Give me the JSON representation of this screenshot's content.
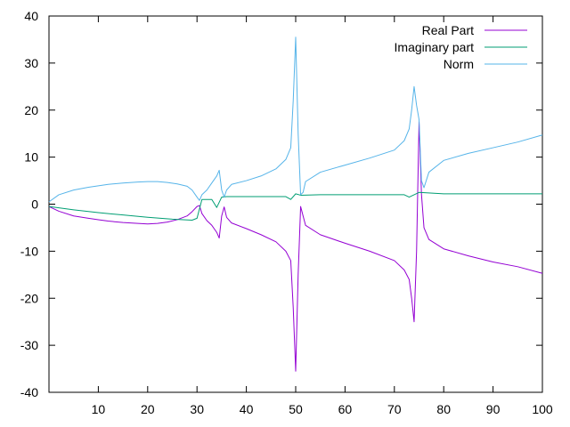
{
  "chart_data": {
    "type": "line",
    "title": "",
    "xlabel": "",
    "ylabel": "",
    "xlim": [
      0,
      100
    ],
    "ylim": [
      -40,
      40
    ],
    "x_ticks": [
      10,
      20,
      30,
      40,
      50,
      60,
      70,
      80,
      90,
      100
    ],
    "y_ticks": [
      -40,
      -30,
      -20,
      -10,
      0,
      10,
      20,
      30,
      40
    ],
    "grid": false,
    "legend_position": "top-right",
    "series": [
      {
        "name": "Real Part",
        "color": "#9400d3",
        "points": [
          [
            0,
            -0.5
          ],
          [
            2,
            -1.5
          ],
          [
            5,
            -2.5
          ],
          [
            8,
            -3.0
          ],
          [
            10,
            -3.3
          ],
          [
            12,
            -3.6
          ],
          [
            15,
            -3.9
          ],
          [
            18,
            -4.1
          ],
          [
            20,
            -4.2
          ],
          [
            22,
            -4.1
          ],
          [
            24,
            -3.8
          ],
          [
            26,
            -3.3
          ],
          [
            28,
            -2.5
          ],
          [
            29,
            -1.6
          ],
          [
            30,
            -0.5
          ],
          [
            30.5,
            -0.3
          ],
          [
            31,
            -2.0
          ],
          [
            32,
            -3.5
          ],
          [
            33,
            -4.5
          ],
          [
            34,
            -6.0
          ],
          [
            34.5,
            -7.2
          ],
          [
            35,
            -2.5
          ],
          [
            35.5,
            -0.6
          ],
          [
            36,
            -2.8
          ],
          [
            37,
            -4.0
          ],
          [
            40,
            -5.2
          ],
          [
            43,
            -6.5
          ],
          [
            46,
            -8.0
          ],
          [
            48,
            -10.0
          ],
          [
            49,
            -12.0
          ],
          [
            49.5,
            -22.0
          ],
          [
            50,
            -35.5
          ],
          [
            50.5,
            -15.0
          ],
          [
            51,
            -0.5
          ],
          [
            51.5,
            -2.5
          ],
          [
            52,
            -4.5
          ],
          [
            55,
            -6.5
          ],
          [
            60,
            -8.3
          ],
          [
            65,
            -10.0
          ],
          [
            70,
            -12.0
          ],
          [
            72,
            -14.0
          ],
          [
            73,
            -16.0
          ],
          [
            73.5,
            -20.0
          ],
          [
            74,
            -25.0
          ],
          [
            74.5,
            -10.0
          ],
          [
            75,
            17.5
          ],
          [
            75.5,
            2.0
          ],
          [
            76,
            -5.0
          ],
          [
            77,
            -7.5
          ],
          [
            80,
            -9.5
          ],
          [
            85,
            -11.0
          ],
          [
            90,
            -12.3
          ],
          [
            95,
            -13.3
          ],
          [
            100,
            -14.7
          ]
        ]
      },
      {
        "name": "Imaginary part",
        "color": "#009e73",
        "points": [
          [
            0,
            -0.5
          ],
          [
            5,
            -1.2
          ],
          [
            10,
            -1.8
          ],
          [
            15,
            -2.3
          ],
          [
            20,
            -2.8
          ],
          [
            25,
            -3.2
          ],
          [
            29,
            -3.4
          ],
          [
            30,
            -3.0
          ],
          [
            31,
            1.0
          ],
          [
            33,
            1.0
          ],
          [
            34,
            -0.7
          ],
          [
            35,
            1.5
          ],
          [
            36,
            1.6
          ],
          [
            40,
            1.6
          ],
          [
            45,
            1.6
          ],
          [
            48,
            1.6
          ],
          [
            49,
            1.0
          ],
          [
            50,
            2.2
          ],
          [
            51,
            1.9
          ],
          [
            55,
            2.0
          ],
          [
            60,
            2.0
          ],
          [
            65,
            2.0
          ],
          [
            70,
            2.0
          ],
          [
            72,
            2.0
          ],
          [
            73,
            1.5
          ],
          [
            74,
            2.0
          ],
          [
            75,
            2.5
          ],
          [
            80,
            2.2
          ],
          [
            85,
            2.2
          ],
          [
            90,
            2.2
          ],
          [
            95,
            2.2
          ],
          [
            100,
            2.2
          ]
        ]
      },
      {
        "name": "Norm",
        "color": "#56b4e9",
        "points": [
          [
            0,
            0.5
          ],
          [
            2,
            2.0
          ],
          [
            5,
            3.0
          ],
          [
            8,
            3.6
          ],
          [
            10,
            3.9
          ],
          [
            12,
            4.2
          ],
          [
            15,
            4.5
          ],
          [
            18,
            4.7
          ],
          [
            20,
            4.8
          ],
          [
            22,
            4.8
          ],
          [
            24,
            4.6
          ],
          [
            26,
            4.3
          ],
          [
            28,
            3.8
          ],
          [
            29,
            3.0
          ],
          [
            30,
            1.5
          ],
          [
            30.5,
            0.8
          ],
          [
            31,
            2.0
          ],
          [
            32,
            3.0
          ],
          [
            33,
            4.5
          ],
          [
            34,
            6.0
          ],
          [
            34.5,
            7.2
          ],
          [
            35,
            3.0
          ],
          [
            35.5,
            1.5
          ],
          [
            36,
            3.0
          ],
          [
            37,
            4.2
          ],
          [
            40,
            5.0
          ],
          [
            43,
            6.0
          ],
          [
            46,
            7.5
          ],
          [
            48,
            9.5
          ],
          [
            49,
            12.0
          ],
          [
            49.5,
            22.0
          ],
          [
            50,
            35.5
          ],
          [
            50.5,
            15.0
          ],
          [
            51,
            2.0
          ],
          [
            51.5,
            2.5
          ],
          [
            52,
            4.8
          ],
          [
            55,
            6.8
          ],
          [
            60,
            8.3
          ],
          [
            65,
            9.8
          ],
          [
            70,
            11.5
          ],
          [
            72,
            13.5
          ],
          [
            73,
            16.0
          ],
          [
            73.5,
            20.0
          ],
          [
            74,
            25.0
          ],
          [
            74.5,
            21.0
          ],
          [
            75,
            18.0
          ],
          [
            75.5,
            5.0
          ],
          [
            76,
            3.5
          ],
          [
            77,
            6.8
          ],
          [
            80,
            9.3
          ],
          [
            85,
            10.8
          ],
          [
            90,
            12.0
          ],
          [
            95,
            13.2
          ],
          [
            100,
            14.7
          ]
        ]
      }
    ]
  }
}
